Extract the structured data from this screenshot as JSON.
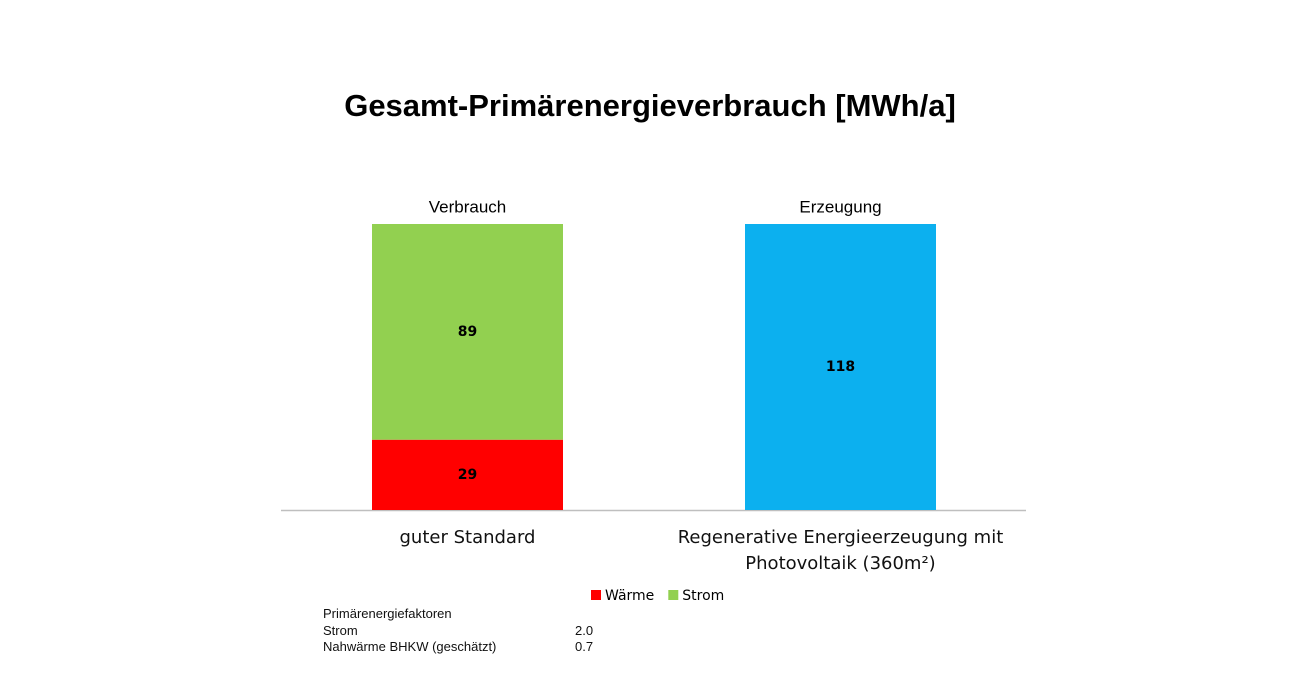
{
  "chart_data": {
    "type": "bar",
    "stacked": true,
    "title": "Gesamt-Primärenergieverbrauch [MWh/a]",
    "categories": [
      "guter Standard",
      "Regenerative Energieerzeugung mit Photovoltaik (360m²)"
    ],
    "annotations": [
      "Verbrauch",
      "Erzeugung"
    ],
    "series": [
      {
        "name": "Wärme",
        "color": "#ff0000",
        "values": [
          29,
          null
        ]
      },
      {
        "name": "Strom",
        "color": "#92d050",
        "values": [
          89,
          null
        ]
      },
      {
        "color": "#0cb0ef",
        "values": [
          null,
          118
        ]
      }
    ],
    "legend": "bottom"
  },
  "notes": {
    "title": "Primärenergiefaktoren",
    "rows": [
      [
        "Strom",
        "2.0"
      ],
      [
        "Nahwärme BHKW (geschätzt)",
        "0.7"
      ]
    ]
  }
}
